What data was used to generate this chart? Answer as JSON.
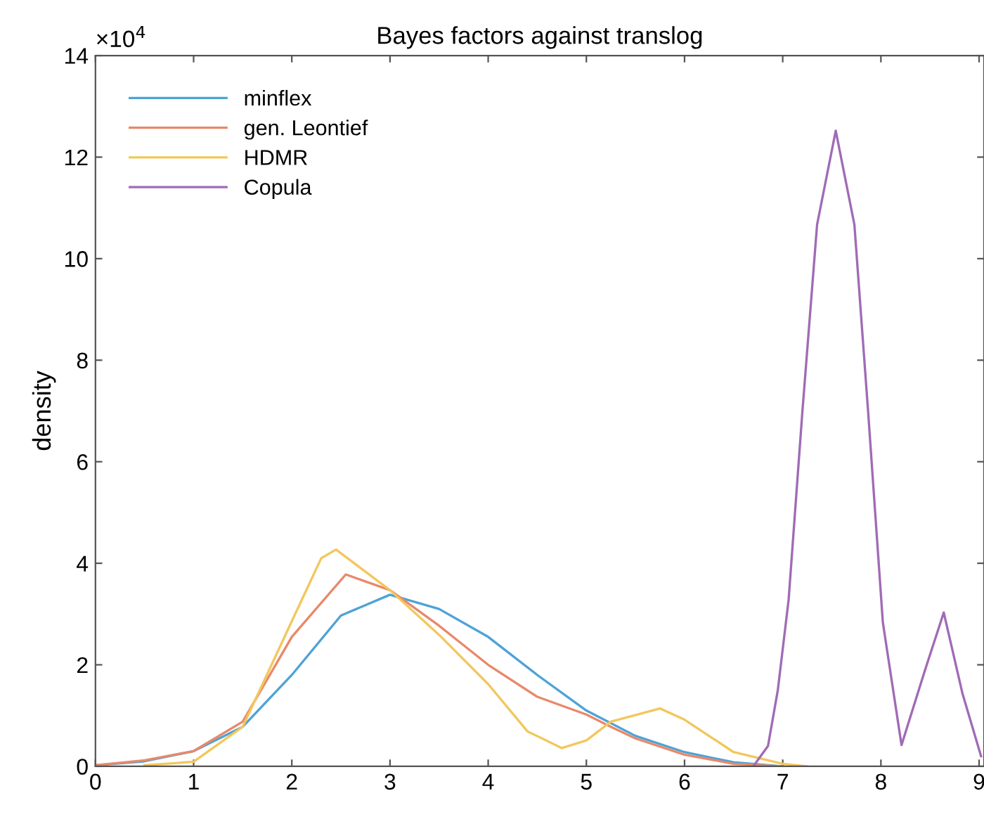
{
  "chart_data": {
    "type": "line",
    "title": "Bayes factors against translog",
    "ylabel": "density",
    "annotations": [
      "×10$^{4}$"
    ],
    "xlim": [
      0,
      9.05
    ],
    "ylim": [
      0,
      14
    ],
    "xticks": [
      0,
      1,
      2,
      3,
      4,
      5,
      6,
      7,
      8,
      9
    ],
    "yticks": [
      0,
      2,
      4,
      6,
      8,
      10,
      12,
      14
    ],
    "grid": false,
    "legend": "top left",
    "marker": "none",
    "line_style": "solid",
    "series": [
      {
        "name": "minflex",
        "color": "#4da3d6",
        "x": [
          0,
          0.5,
          1,
          1.5,
          2,
          2.5,
          3,
          3.5,
          4,
          4.5,
          5,
          5.5,
          6,
          6.5,
          7
        ],
        "values": [
          0.02,
          0.1,
          0.3,
          0.78,
          1.8,
          2.97,
          3.38,
          3.1,
          2.55,
          1.8,
          1.1,
          0.6,
          0.28,
          0.08,
          0
        ]
      },
      {
        "name": "gen. Leontief",
        "color": "#e8896a",
        "x": [
          0,
          0.5,
          1,
          1.5,
          2,
          2.55,
          3,
          3.5,
          4,
          4.5,
          5,
          5.25,
          5.5,
          6,
          6.5,
          7
        ],
        "values": [
          0.02,
          0.12,
          0.3,
          0.88,
          2.55,
          3.78,
          3.47,
          2.77,
          2.0,
          1.37,
          1.02,
          0.78,
          0.55,
          0.23,
          0.05,
          0
        ]
      },
      {
        "name": "HDMR",
        "color": "#f2c75c",
        "x": [
          0.5,
          1,
          1.5,
          2,
          2.3,
          2.45,
          3,
          3.5,
          4,
          4.4,
          4.75,
          5,
          5.25,
          5.75,
          6,
          6.5,
          7,
          7.25
        ],
        "values": [
          0.02,
          0.09,
          0.78,
          2.86,
          4.1,
          4.27,
          3.47,
          2.59,
          1.62,
          0.69,
          0.36,
          0.51,
          0.88,
          1.14,
          0.92,
          0.28,
          0.05,
          0
        ]
      },
      {
        "name": "Copula",
        "color": "#a06bb5",
        "x": [
          6.7,
          6.85,
          6.95,
          7.06,
          7.2,
          7.35,
          7.54,
          7.73,
          7.87,
          8.02,
          8.21,
          8.45,
          8.64,
          8.83,
          9.02
        ],
        "values": [
          0,
          0.4,
          1.5,
          3.28,
          6.98,
          10.67,
          12.52,
          10.67,
          6.98,
          2.83,
          0.42,
          1.9,
          3.03,
          1.44,
          0.2
        ]
      }
    ]
  }
}
